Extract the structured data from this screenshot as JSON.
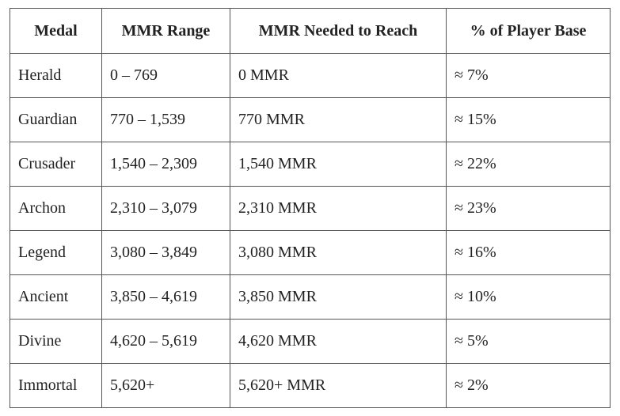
{
  "table": {
    "header": [
      "Medal",
      "MMR Range",
      "MMR Needed to Reach",
      "% of Player Base"
    ],
    "rows": [
      [
        "Herald",
        "0 – 769",
        "0 MMR",
        "≈ 7%"
      ],
      [
        "Guardian",
        "770 – 1,539",
        "770 MMR",
        "≈ 15%"
      ],
      [
        "Crusader",
        "1,540 – 2,309",
        "1,540 MMR",
        "≈ 22%"
      ],
      [
        "Archon",
        "2,310 – 3,079",
        "2,310 MMR",
        "≈ 23%"
      ],
      [
        "Legend",
        "3,080 – 3,849",
        "3,080 MMR",
        "≈ 16%"
      ],
      [
        "Ancient",
        "3,850 – 4,619",
        "3,850 MMR",
        "≈ 10%"
      ],
      [
        "Divine",
        "4,620 – 5,619",
        "4,620 MMR",
        "≈ 5%"
      ],
      [
        "Immortal",
        "5,620+",
        "5,620+ MMR",
        "≈ 2%"
      ]
    ]
  }
}
